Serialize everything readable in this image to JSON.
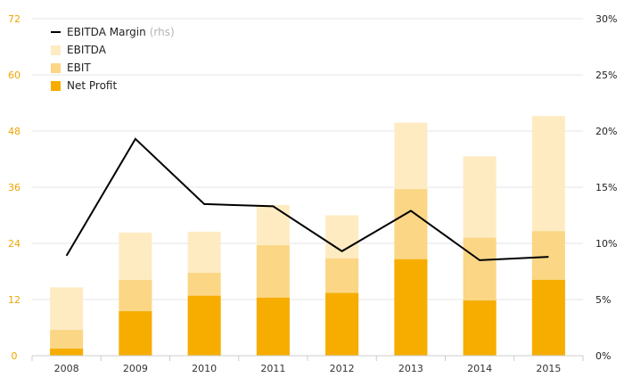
{
  "chart_data": {
    "type": "bar",
    "categories": [
      "2008",
      "2009",
      "2010",
      "2011",
      "2012",
      "2013",
      "2014",
      "2015"
    ],
    "series": [
      {
        "name": "Net Profit",
        "kind": "bar",
        "color": "#f6ad00",
        "values": [
          1.5,
          9.5,
          12.8,
          12.4,
          13.4,
          20.6,
          11.8,
          16.2
        ]
      },
      {
        "name": "EBIT",
        "kind": "bar",
        "color": "#fbd685",
        "values": [
          5.5,
          16.2,
          17.7,
          23.6,
          20.8,
          35.6,
          25.2,
          26.6
        ]
      },
      {
        "name": "EBITDA",
        "kind": "bar",
        "color": "#feebc2",
        "values": [
          14.6,
          26.3,
          26.5,
          32.2,
          30.0,
          49.8,
          42.6,
          51.2
        ]
      },
      {
        "name": "EBITDA Margin",
        "kind": "line",
        "axis": "right",
        "color": "#000000",
        "values": [
          8.9,
          19.3,
          13.5,
          13.3,
          9.3,
          12.9,
          8.5,
          8.8
        ]
      }
    ],
    "y_left": {
      "ticks": [
        "0",
        "12",
        "24",
        "36",
        "48",
        "60",
        "72"
      ],
      "lim": [
        0,
        72
      ]
    },
    "y_right": {
      "ticks": [
        "0%",
        "5%",
        "10%",
        "15%",
        "20%",
        "25%",
        "30%"
      ],
      "lim": [
        0,
        30
      ]
    },
    "grid": true,
    "legend_position": "top-left"
  },
  "legend": {
    "items": [
      {
        "label": "EBITDA Margin",
        "suffix": "(rhs)"
      },
      {
        "label": "EBITDA"
      },
      {
        "label": "EBIT"
      },
      {
        "label": "Net Profit"
      }
    ]
  },
  "colors": {
    "net_profit": "#f6ad00",
    "ebit": "#fbd685",
    "ebitda": "#feebc2",
    "margin_line": "#000000",
    "left_tick": "#f0a500",
    "grid": "#e6e6e6"
  }
}
